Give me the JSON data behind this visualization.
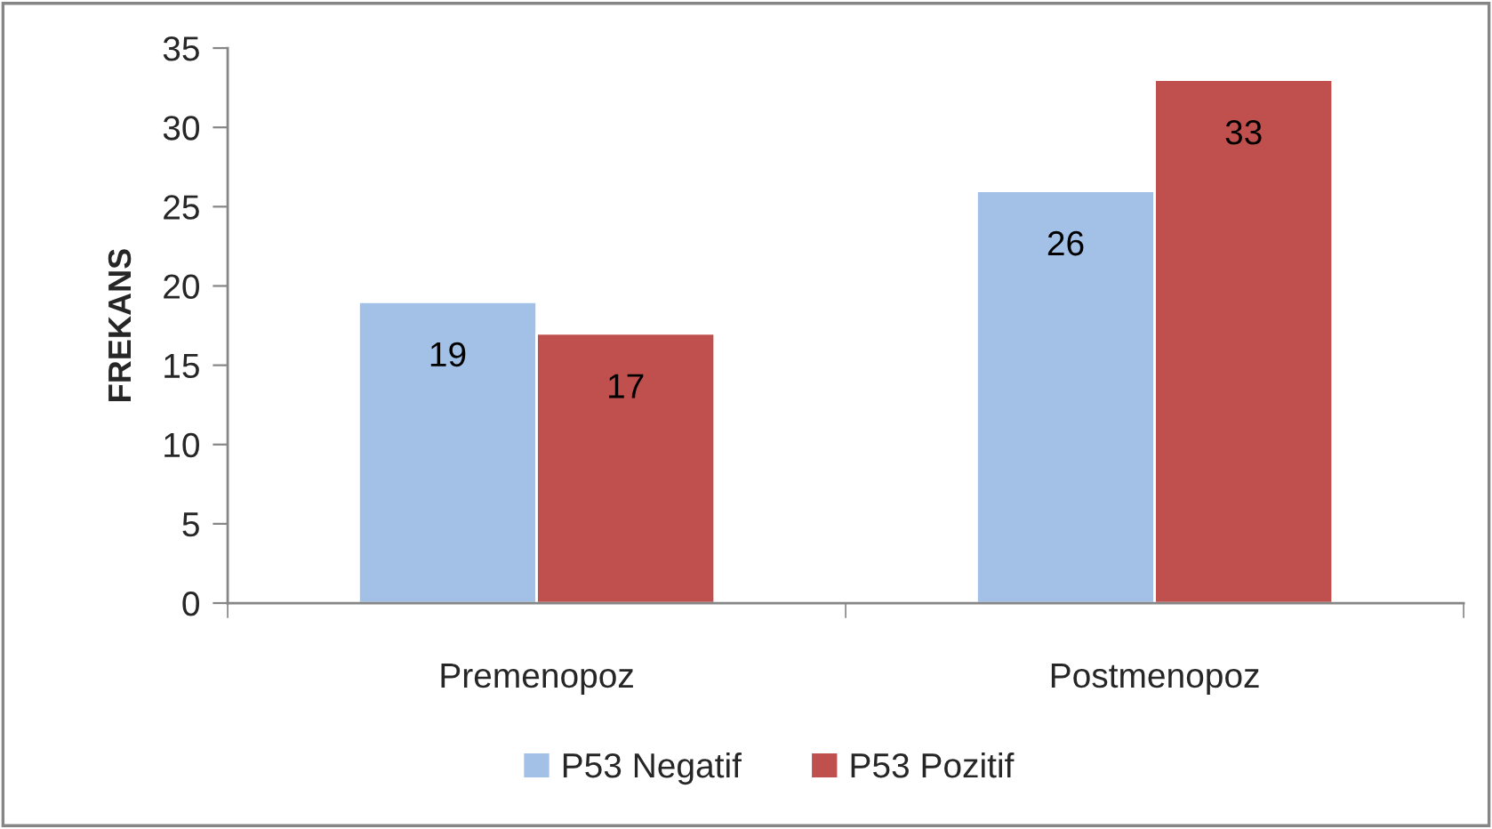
{
  "chart_data": {
    "type": "bar",
    "ylabel": "FREKANS",
    "categories": [
      "Premenopoz",
      "Postmenopoz"
    ],
    "series": [
      {
        "name": "P53 Negatif",
        "color": "#a3c1e6",
        "values": [
          19,
          26
        ]
      },
      {
        "name": "P53 Pozitif",
        "color": "#c0504d",
        "values": [
          17,
          33
        ]
      }
    ],
    "ylim": [
      0,
      35
    ],
    "yticks": [
      0,
      5,
      10,
      15,
      20,
      25,
      30,
      35
    ],
    "grid": false,
    "legend": "bottom",
    "data_labels": true
  }
}
